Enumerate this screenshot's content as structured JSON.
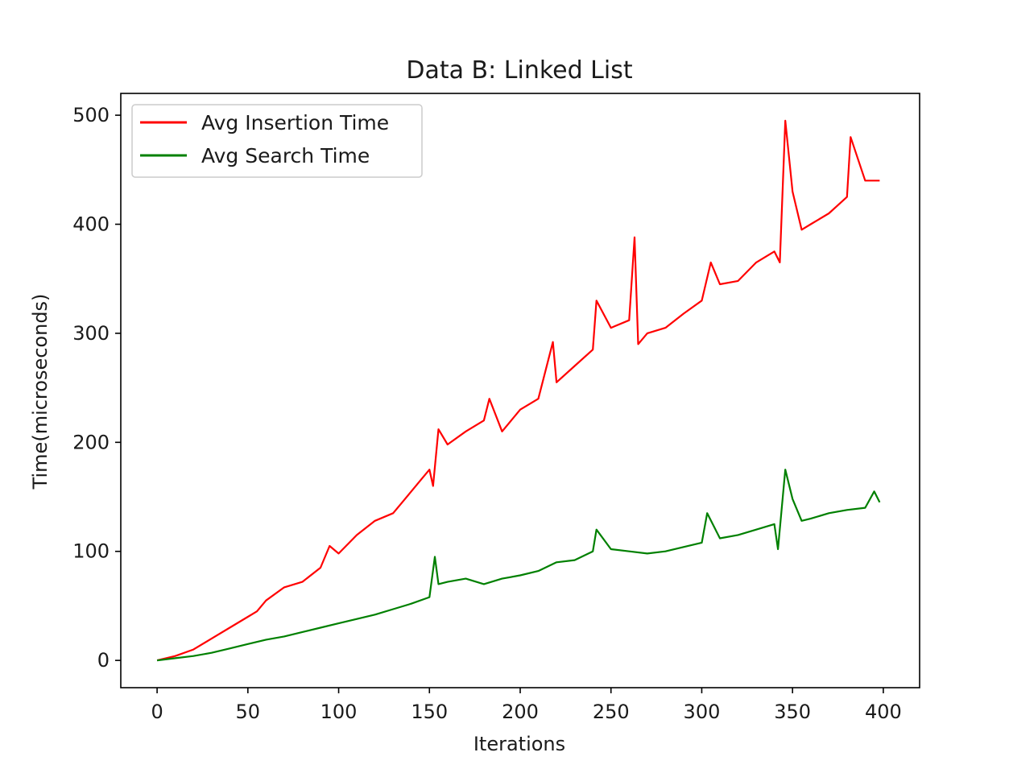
{
  "chart_data": {
    "type": "line",
    "title": "Data B: Linked List",
    "xlabel": "Iterations",
    "ylabel": "Time(microseconds)",
    "xlim": [
      -20,
      420
    ],
    "ylim": [
      -25,
      520
    ],
    "xticks": [
      "0",
      "50",
      "100",
      "150",
      "200",
      "250",
      "300",
      "350",
      "400"
    ],
    "yticks": [
      "0",
      "100",
      "200",
      "300",
      "400",
      "500"
    ],
    "grid": false,
    "legend": "upper left",
    "series": [
      {
        "name": "Avg Insertion Time",
        "color": "#ff0000",
        "x": [
          0,
          10,
          20,
          30,
          40,
          50,
          55,
          60,
          70,
          80,
          90,
          95,
          100,
          110,
          120,
          130,
          135,
          140,
          145,
          150,
          152,
          155,
          160,
          170,
          180,
          183,
          190,
          200,
          210,
          218,
          220,
          230,
          240,
          242,
          250,
          260,
          263,
          265,
          270,
          280,
          290,
          300,
          305,
          310,
          320,
          330,
          340,
          343,
          346,
          350,
          355,
          360,
          370,
          380,
          382,
          390,
          398
        ],
        "values": [
          0,
          4,
          10,
          20,
          30,
          40,
          45,
          55,
          67,
          72,
          85,
          105,
          98,
          115,
          128,
          135,
          145,
          155,
          165,
          175,
          160,
          212,
          198,
          210,
          220,
          240,
          210,
          230,
          240,
          292,
          255,
          270,
          285,
          330,
          305,
          312,
          388,
          290,
          300,
          305,
          318,
          330,
          365,
          345,
          348,
          365,
          375,
          365,
          495,
          430,
          395,
          400,
          410,
          425,
          480,
          440,
          440
        ]
      },
      {
        "name": "Avg Search Time",
        "color": "#008000",
        "x": [
          0,
          10,
          20,
          30,
          40,
          50,
          60,
          70,
          80,
          90,
          100,
          110,
          120,
          130,
          140,
          150,
          153,
          155,
          160,
          170,
          180,
          190,
          200,
          210,
          220,
          230,
          240,
          242,
          250,
          260,
          270,
          280,
          290,
          300,
          303,
          310,
          320,
          330,
          340,
          342,
          346,
          350,
          355,
          360,
          370,
          380,
          390,
          395,
          398
        ],
        "values": [
          0,
          2,
          4,
          7,
          11,
          15,
          19,
          22,
          26,
          30,
          34,
          38,
          42,
          47,
          52,
          58,
          95,
          70,
          72,
          75,
          70,
          75,
          78,
          82,
          90,
          92,
          100,
          120,
          102,
          100,
          98,
          100,
          104,
          108,
          135,
          112,
          115,
          120,
          125,
          102,
          175,
          148,
          128,
          130,
          135,
          138,
          140,
          155,
          145
        ]
      }
    ]
  }
}
